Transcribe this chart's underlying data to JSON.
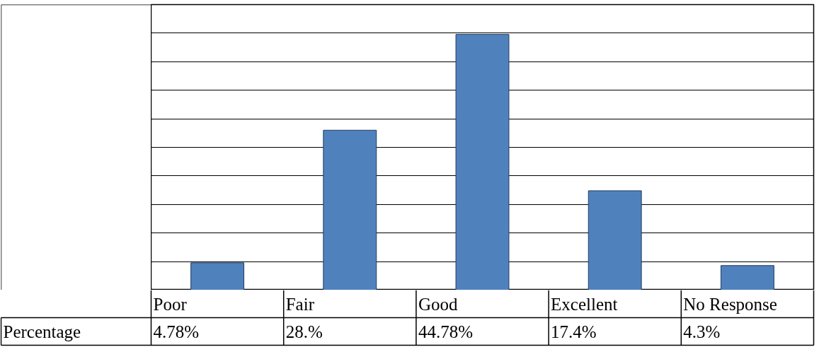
{
  "chart_data": {
    "type": "bar",
    "categories": [
      "Poor",
      "Fair",
      "Good",
      "Excellent",
      "No Response"
    ],
    "series": [
      {
        "name": "Percentage",
        "color": "#4f81bd",
        "values": [
          4.78,
          28,
          44.78,
          17.4,
          4.3
        ],
        "value_labels": [
          "4.78%",
          "28.%",
          "44.78%",
          "17.4%",
          "4.3%"
        ]
      }
    ],
    "ylim": [
      0,
      50
    ],
    "yticks": [
      {
        "value": 0,
        "label": null
      },
      {
        "value": 5,
        "label": null
      },
      {
        "value": 10,
        "label": null
      },
      {
        "value": 15,
        "label": null
      },
      {
        "value": 20,
        "label": null
      },
      {
        "value": 25,
        "label": null
      },
      {
        "value": 30,
        "label": null
      },
      {
        "value": 35,
        "label": null
      },
      {
        "value": 40,
        "label": null
      },
      {
        "value": 45,
        "label": null
      },
      {
        "value": 50,
        "label": null
      }
    ],
    "grid": "y",
    "tick_labels": false,
    "legend": false
  }
}
